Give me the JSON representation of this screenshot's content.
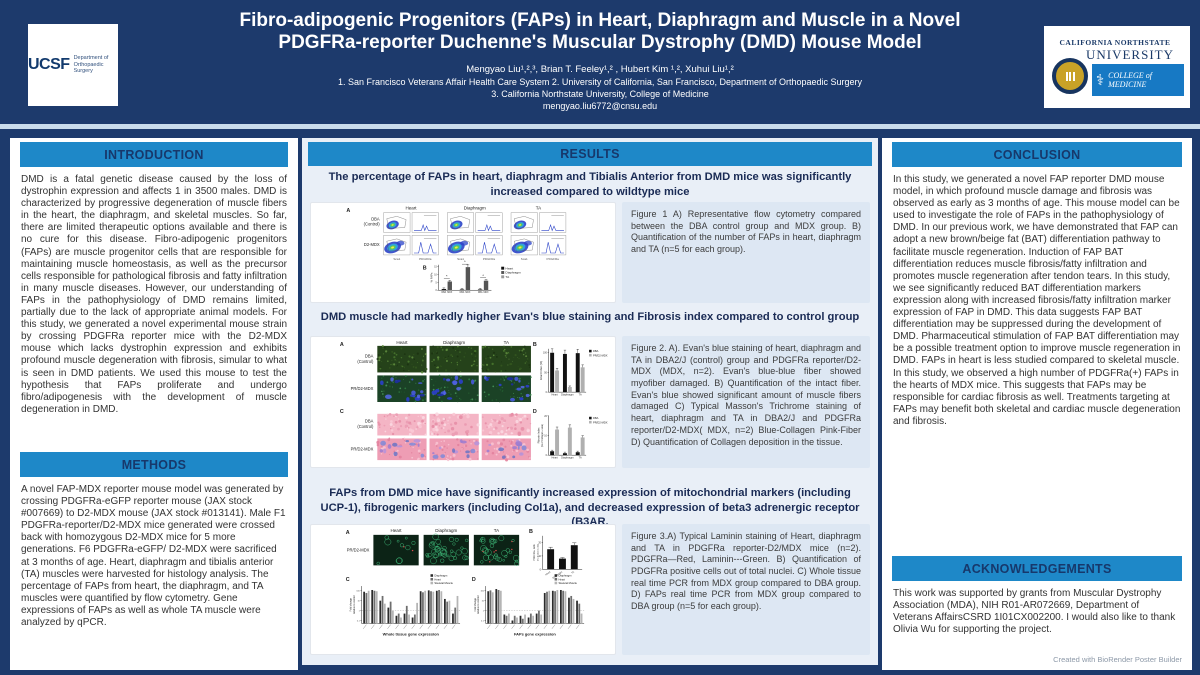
{
  "header": {
    "title": "Fibro-adipogenic Progenitors (FAPs) in Heart, Diaphragm and Muscle in a Novel PDGFRa-reporter Duchenne's Muscular Dystrophy (DMD) Mouse Model",
    "authors": "Mengyao Liu¹,²,³, Brian T. Feeley¹,² , Hubert Kim ¹,², Xuhui Liu¹,²",
    "affiliation1": "1. San Francisco Veterans Affair Health Care System 2. University of California, San Francisco, Department of Orthopaedic Surgery",
    "affiliation2": "3. California Northstate University, College of Medicine",
    "email": "mengyao.liu6772@cnsu.edu"
  },
  "logos": {
    "ucsf": {
      "acronym": "UCSF",
      "dept1": "Department of",
      "dept2": "Orthopaedic Surgery"
    },
    "cnsu": {
      "line1": "CALIFORNIA NORTHSTATE",
      "line2": "UNIVERSITY",
      "college": "COLLEGE of MEDICINE",
      "caduceus": "medicine-caduceus"
    }
  },
  "sections": {
    "introduction": {
      "header": "INTRODUCTION",
      "body": "DMD is a fatal genetic disease caused by the loss of dystrophin expression and affects 1 in 3500 males. DMD is characterized by progressive degeneration of muscle fibers in the heart, the diaphragm, and skeletal muscles. So far, there are limited therapeutic options available and there is no cure for this disease. Fibro-adipogenic progenitors (FAPs) are muscle progenitor cells that are responsible for maintaining muscle homeostasis, as well as the precursor cells responsible for pathological fibrosis and fatty infiltration in many muscle diseases. However, our understanding of FAPs in the pathophysiology of DMD remains limited, partially due to the lack of appropriate animal models. For this study, we generated a novel experimental mouse strain by crossing PDGFRa reporter mice with the D2-MDX mouse which lacks dystrophin expression and exhibits profound muscle degeneration with fibrosis, simular to what is seen in DMD patients. We used this mouse to test the hypothesis that FAPs proliferate and undergo fibro/adipogenesis with the development of muscle degeneration in DMD."
    },
    "methods": {
      "header": "METHODS",
      "body": "A novel FAP-MDX reporter mouse model was generated by crossing PDGFRa-eGFP reporter mouse (JAX stock #007669) to D2-MDX mouse (JAX stock #013141).  Male F1 PDGFRa-reporter/D2-MDX mice generated were crossed back with homozygous D2-MDX mice for 5 more generations.  F6 PDGFRa-eGFP/ D2-MDX were sacrificed at 3 months of age. Heart, diaphragm and tibialis anterior (TA) muscles were harvested for histology analysis. The percentage of FAPs from heart, the diaphragm, and TA muscles were quantified by flow cytometry. Gene expressions of FAPs as well as whole TA muscle were analyzed by qPCR."
    },
    "results": {
      "header": "RESULTS",
      "fig1": {
        "heading": "The percentage of FAPs in heart, diaphragm and Tibialis Anterior from DMD mice was significantly increased compared to wildtype mice",
        "caption": "Figure 1 A) Representative flow cytometry compared between the DBA control group and MDX group. B) Quantification of the number of FAPs in heart, diaphragm and TA (n=5 for each group).",
        "panel_labels": [
          "A",
          "B"
        ],
        "row_labels": [
          "DBA",
          "(Control)",
          "D2-MDX"
        ],
        "col_labels": [
          "Heart",
          "Diaphragm",
          "TA"
        ],
        "plot_x_labels": [
          "Sca1",
          "PDGFRa"
        ]
      },
      "fig2": {
        "heading": "DMD muscle had markedly higher Evan's blue staining and Fibrosis index compared to control group",
        "caption": "Figure 2. A). Evan's blue staining of heart, diaphragm and TA in DBA2/J (control) group and PDGFRa reporter/D2-MDX (MDX, n=2). Evan's blue-blue fiber showed myofiber damaged. B) Quantification of the intact fiber. Evan's blue showed significant amount of muscle fibers damaged C) Typical Masson's Trichrome staining of heart, diaphragm and TA in DBA2/J and PDGFRa reporter/D2-MDX( MDX, n=2) Blue-Collagen Pink-Fiber D) Quantification of Collagen deposition in the tissue.",
        "panel_labels": [
          "A",
          "B",
          "C",
          "D"
        ],
        "row_labels": [
          "DBA",
          "(Control)",
          "PR/D2-MDX"
        ],
        "col_labels": [
          "Heart",
          "Diaphragm",
          "TA"
        ]
      },
      "fig3": {
        "heading": "FAPs from DMD mice have significantly increased expression of mitochondrial markers (including UCP-1), fibrogenic markers (including Col1a), and decreased expression of beta3 adrenergic receptor (B3AR.",
        "caption": "Figure 3.A) Typical Laminin staining of Heart, diaphragm and TA in PDGFRa reporter-D2/MDX mice (n=2). PDGFRa—Red, Laminin---Green.  B) Quantification of PDGFRa positive cells out of total nuclei.  C) Whole tissue real time PCR from MDX group compared to DBA group. D) FAPs real time PCR from MDX group compared to DBA group (n=5 for each group).",
        "panel_labels": [
          "A",
          "B",
          "C",
          "D"
        ],
        "row_labels": [
          "PR/D2-MDX"
        ],
        "col_labels": [
          "Heart",
          "Diaphragm",
          "TA"
        ]
      }
    },
    "conclusion": {
      "header": "CONCLUSION",
      "body": "In this study, we generated a novel FAP reporter DMD mouse model, in which profound muscle damage and fibrosis was observed as early as 3 months of age. This mouse model can be used to investigate the role of FAPs in the pathophysiology of DMD. In our previous work, we have demonstrated that FAP can adopt a new brown/beige fat (BAT) differentiation pathway to facilitate muscle regeneration. Induction of FAP BAT differentiation reduces muscle fibrosis/fatty infiltration and promotes muscle regeneration after tendon tears. In this study, we see significantly reduced BAT differentiation markers expression along with increased fibrosis/fatty infiltration marker expression of FAP in DMD. This data suggests FAP BAT differentiation may be suppressed during the development of DMD. Pharmaceutical stimulation of FAP BAT differentiation may be a possible treatment option to improve muscle regeneration in DMD.  FAPs in heart is less studied compared to skeletal muscle. In this study, we observed a high number of PDGFRa(+) FAPs in the hearts of MDX mice. This suggests that FAPs may be responsible for cardiac fibrosis as well. Treatments targeting at FAPs may benefit both skeletal and cardiac muscle degeneration and fibrosis."
    },
    "acknowledgements": {
      "header": "ACKNOWLEDGEMENTS",
      "body": "This work was supported by grants from Muscular Dystrophy Association (MDA), NIH R01-AR072669, Department of Veterans AffairsCSRD 1I01CX002200. I would also like to thank Olivia Wu for supporting the project."
    }
  },
  "credit": "Created with BioRender Poster Builder",
  "colors": {
    "background_navy": "#1d3a6c",
    "section_bar_blue": "#1e88c8",
    "section_bar_text": "#17386b",
    "middle_panel_bg": "#e9eff7",
    "caption_bg": "#dde7f3"
  },
  "chart_data": [
    {
      "id": "fig1b",
      "type": "bar",
      "panel": "B",
      "ylabel": "% FAPs",
      "categories": [
        "Heart",
        "Diaphragm",
        "TA"
      ],
      "pair_labels": [
        "DBA",
        "MDX"
      ],
      "series": [
        {
          "name": "DBA",
          "color": "#1a1a1a",
          "values": [
            0.8,
            0.5,
            0.5
          ]
        },
        {
          "name": "MDX",
          "color": "#555555",
          "values": [
            5.5,
            14.5,
            6.0
          ]
        }
      ],
      "ylim": [
        0,
        16
      ],
      "yticks": [
        0,
        5,
        10,
        15
      ],
      "legend": [
        {
          "label": "Heart",
          "color": "#111111"
        },
        {
          "label": "Diaphragm",
          "color": "#555555"
        },
        {
          "label": "TA",
          "color": "#999999"
        }
      ],
      "sig": "*"
    },
    {
      "id": "fig2b",
      "type": "bar",
      "panel": "B",
      "ylabel": "Intact Fiber (%)",
      "categories": [
        "Heart",
        "Diaphragm",
        "TA"
      ],
      "series": [
        {
          "name": "DBA",
          "color": "#111111",
          "values": [
            100,
            97,
            99
          ]
        },
        {
          "name": "PR/D2-MDX",
          "color": "#b0b0b0",
          "values": [
            55,
            13,
            63
          ]
        }
      ],
      "ylim": [
        0,
        110
      ],
      "yticks": [
        0,
        50,
        100
      ]
    },
    {
      "id": "fig2d",
      "type": "bar",
      "panel": "D",
      "ylabel": "Fibrosis Index (% of Collagen+ area)",
      "categories": [
        "Heart",
        "Diaphragm",
        "TA"
      ],
      "series": [
        {
          "name": "DBA",
          "color": "#111111",
          "values": [
            2,
            1,
            1.5
          ]
        },
        {
          "name": "PR/D2-MDX",
          "color": "#b0b0b0",
          "values": [
            13,
            14,
            9
          ]
        }
      ],
      "ylim": [
        0,
        20
      ],
      "yticks": [
        0,
        10,
        20
      ]
    },
    {
      "id": "fig3b",
      "type": "bar",
      "panel": "B",
      "ylabel": "PDGFRa positive cells (% of total nuclei)",
      "categories": [
        "Heart",
        "Diaphragm",
        "TA"
      ],
      "series": [
        {
          "name": "MDX",
          "color": "#111111",
          "values": [
            15,
            8,
            18
          ]
        }
      ],
      "ylim": [
        0,
        25
      ],
      "yticks": [
        0,
        10,
        20
      ]
    },
    {
      "id": "fig3c",
      "type": "grouped-bar",
      "panel": "C",
      "scale": "log",
      "xlabel": "Whole tissue gene expression",
      "ylabel": "Fold change relative to control",
      "x_tick_labels": "illegible",
      "n_groups": 12,
      "refline": 1,
      "series": [
        {
          "name": "Diaphragm",
          "color": "#2b2b2b",
          "values": [
            80,
            120,
            10,
            2,
            0.3,
            0.5,
            0.2,
            90,
            110,
            100,
            15,
            0.5
          ]
        },
        {
          "name": "Heart",
          "color": "#6e6e6e",
          "values": [
            60,
            100,
            30,
            8,
            0.5,
            3,
            0.4,
            70,
            90,
            120,
            8,
            2
          ]
        },
        {
          "name": "Skeletal Muscle",
          "color": "#b5b5b5",
          "values": [
            100,
            90,
            5,
            1,
            0.2,
            0.4,
            6,
            100,
            80,
            90,
            10,
            30
          ]
        }
      ]
    },
    {
      "id": "fig3d",
      "type": "grouped-bar",
      "panel": "D",
      "scale": "log",
      "xlabel": "FAPs gene expression",
      "ylabel": "Fold change relative to control",
      "x_tick_labels": "illegible",
      "n_groups": 12,
      "refline": 1,
      "series": [
        {
          "name": "Diaphragm",
          "color": "#2b2b2b",
          "values": [
            90,
            150,
            0.4,
            0.1,
            0.3,
            0.2,
            0.5,
            60,
            100,
            120,
            20,
            10
          ]
        },
        {
          "name": "Heart",
          "color": "#6e6e6e",
          "values": [
            110,
            120,
            0.3,
            0.3,
            0.15,
            0.5,
            1,
            80,
            90,
            100,
            30,
            5
          ]
        },
        {
          "name": "Skeletal Muscle",
          "color": "#b5b5b5",
          "values": [
            70,
            100,
            0.5,
            0.2,
            0.4,
            0.3,
            0.4,
            100,
            120,
            90,
            15,
            0.5
          ]
        }
      ]
    }
  ]
}
